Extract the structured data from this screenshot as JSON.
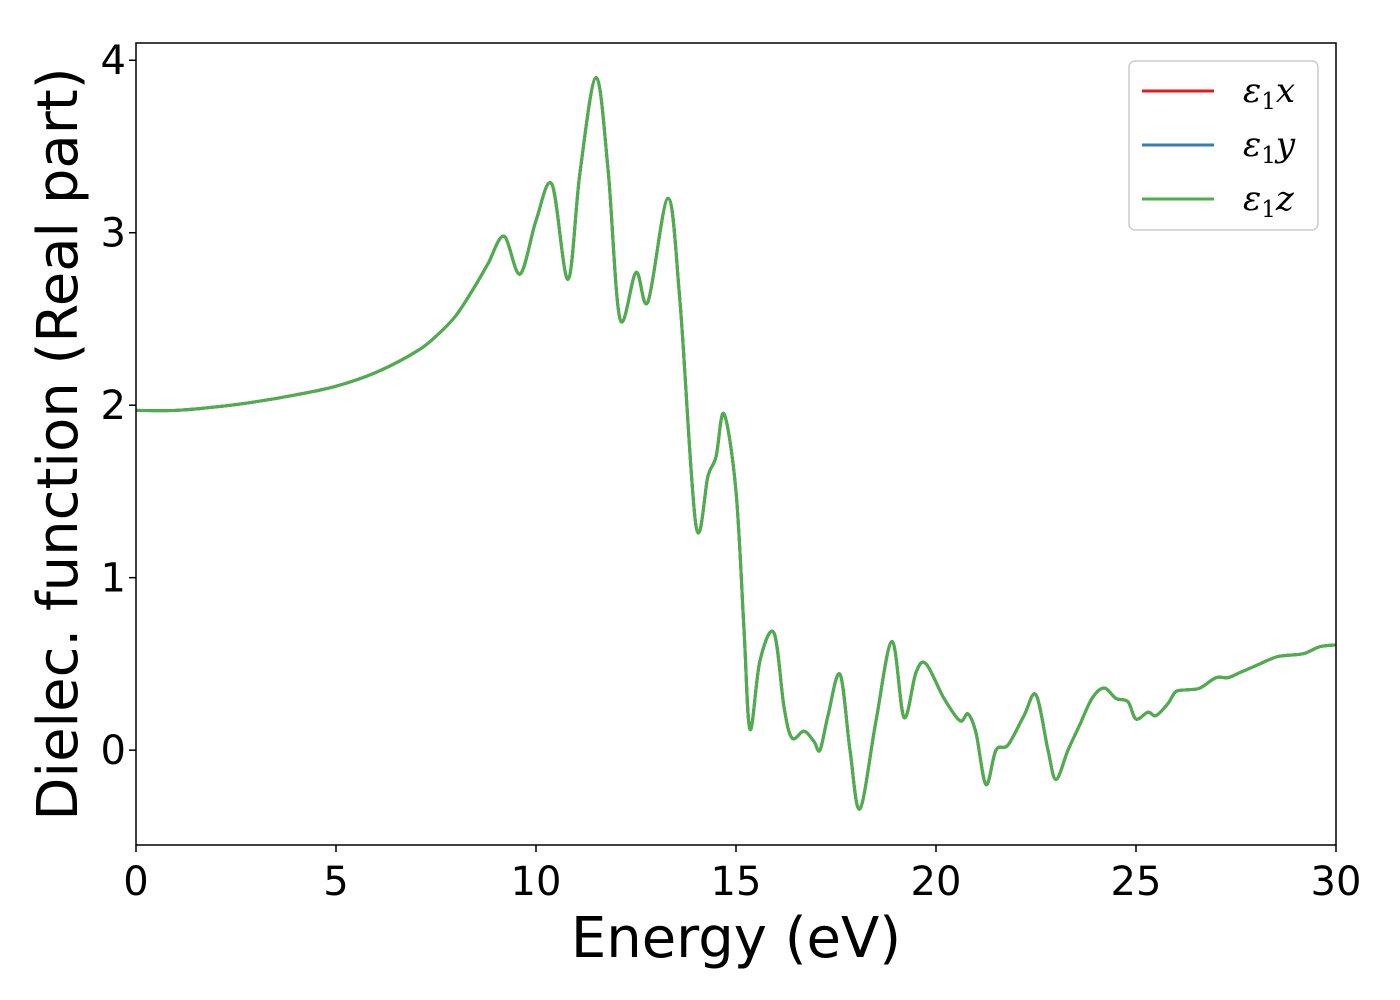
{
  "chart_data": {
    "type": "line",
    "xlabel": "Energy (eV)",
    "ylabel": "Dielec. function (Real part)",
    "xlim": [
      0,
      30
    ],
    "ylim": [
      -0.55,
      4.1
    ],
    "xticks": [
      0,
      5,
      10,
      15,
      20,
      25,
      30
    ],
    "yticks": [
      0,
      1,
      2,
      3,
      4
    ],
    "grid": false,
    "legend_position": "top-right",
    "series": [
      {
        "name": "ε₁x",
        "legend": {
          "main": "ε",
          "sub": "1",
          "axis": "x"
        },
        "color": "#e41a1c"
      },
      {
        "name": "ε₁y",
        "legend": {
          "main": "ε",
          "sub": "1",
          "axis": "y"
        },
        "color": "#377eb8"
      },
      {
        "name": "ε₁z",
        "legend": {
          "main": "ε",
          "sub": "1",
          "axis": "z"
        },
        "color": "#4daf4a"
      }
    ],
    "x": [
      0,
      1,
      2,
      3,
      4,
      5,
      6,
      7,
      7.5,
      8,
      8.5,
      8.8,
      9.2,
      9.6,
      10.0,
      10.4,
      10.8,
      11.1,
      11.5,
      11.8,
      12.1,
      12.5,
      12.8,
      13.3,
      13.6,
      14.0,
      14.3,
      14.5,
      14.7,
      15.0,
      15.2,
      15.35,
      15.6,
      15.95,
      16.2,
      16.4,
      16.7,
      16.95,
      17.1,
      17.3,
      17.6,
      17.85,
      18.1,
      18.5,
      18.9,
      19.2,
      19.5,
      19.75,
      20.2,
      20.6,
      20.8,
      21.0,
      21.25,
      21.5,
      21.8,
      22.2,
      22.5,
      22.8,
      23.0,
      23.3,
      23.6,
      23.9,
      24.2,
      24.5,
      24.8,
      25.0,
      25.3,
      25.5,
      25.8,
      26.0,
      26.3,
      26.6,
      27.0,
      27.3,
      27.6,
      28.0,
      28.5,
      28.8,
      29.2,
      29.6,
      30.0
    ],
    "y": [
      1.97,
      1.97,
      1.99,
      2.02,
      2.06,
      2.11,
      2.19,
      2.31,
      2.4,
      2.52,
      2.7,
      2.82,
      2.98,
      2.76,
      3.07,
      3.28,
      2.73,
      3.35,
      3.9,
      3.37,
      2.5,
      2.77,
      2.6,
      3.2,
      2.6,
      1.3,
      1.59,
      1.7,
      1.95,
      1.5,
      0.7,
      0.12,
      0.52,
      0.68,
      0.25,
      0.07,
      0.11,
      0.05,
      0.0,
      0.2,
      0.44,
      0.0,
      -0.34,
      0.17,
      0.63,
      0.19,
      0.45,
      0.5,
      0.3,
      0.17,
      0.21,
      0.1,
      -0.2,
      0.0,
      0.03,
      0.2,
      0.32,
      0.0,
      -0.17,
      0.0,
      0.15,
      0.3,
      0.36,
      0.3,
      0.28,
      0.18,
      0.22,
      0.2,
      0.27,
      0.34,
      0.35,
      0.36,
      0.42,
      0.42,
      0.45,
      0.49,
      0.54,
      0.55,
      0.56,
      0.6,
      0.61
    ]
  }
}
